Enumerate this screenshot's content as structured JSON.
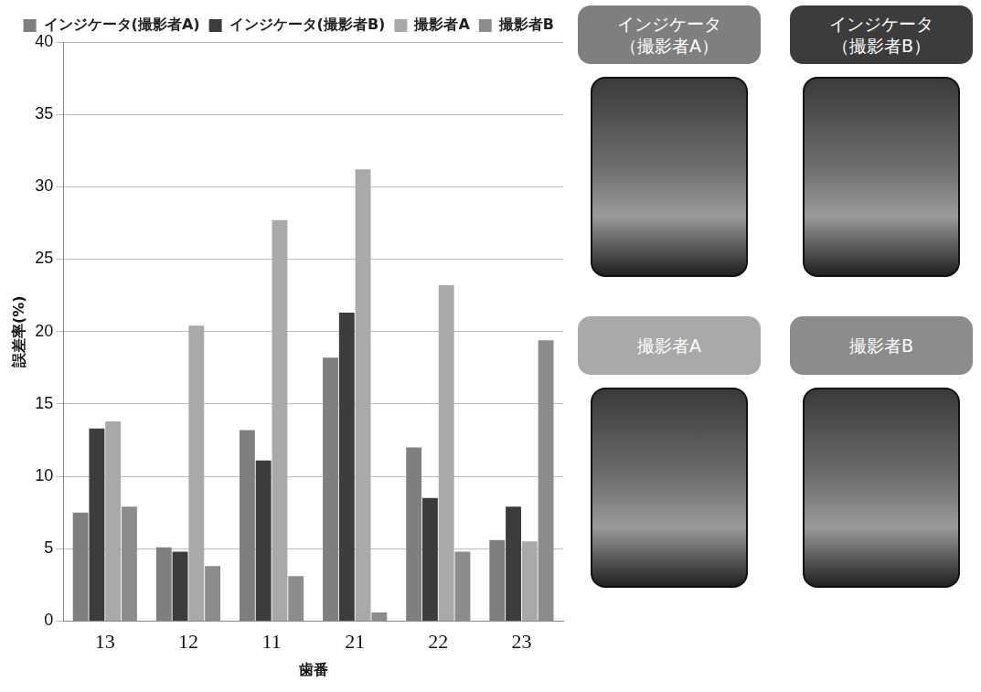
{
  "chart_data": {
    "type": "bar",
    "categories": [
      "13",
      "12",
      "11",
      "21",
      "22",
      "23"
    ],
    "series": [
      {
        "name": "インジケータ(撮影者A)",
        "color": "#7f7f7f",
        "values": [
          7.5,
          5.1,
          13.2,
          18.2,
          12.0,
          5.6
        ]
      },
      {
        "name": "インジケータ(撮影者B)",
        "color": "#3c3c3c",
        "values": [
          13.3,
          4.8,
          11.1,
          21.3,
          8.5,
          7.9
        ]
      },
      {
        "name": "撮影者A",
        "color": "#a9a9a9",
        "values": [
          13.8,
          20.4,
          27.7,
          31.2,
          23.2,
          5.5
        ]
      },
      {
        "name": "撮影者B",
        "color": "#8c8c8c",
        "values": [
          7.9,
          3.8,
          3.1,
          0.6,
          4.8,
          19.4
        ]
      }
    ],
    "x_label": "歯番",
    "y_label": "誤差率(%)",
    "ylim": [
      0,
      40
    ],
    "yticks": [
      0,
      5,
      10,
      15,
      20,
      25,
      30,
      35,
      40
    ],
    "grid": true,
    "legend": "top",
    "annotations": [
      "インジケータ（撮影者A）",
      "インジケータ（撮影者B）",
      "撮影者A",
      "撮影者B"
    ]
  }
}
